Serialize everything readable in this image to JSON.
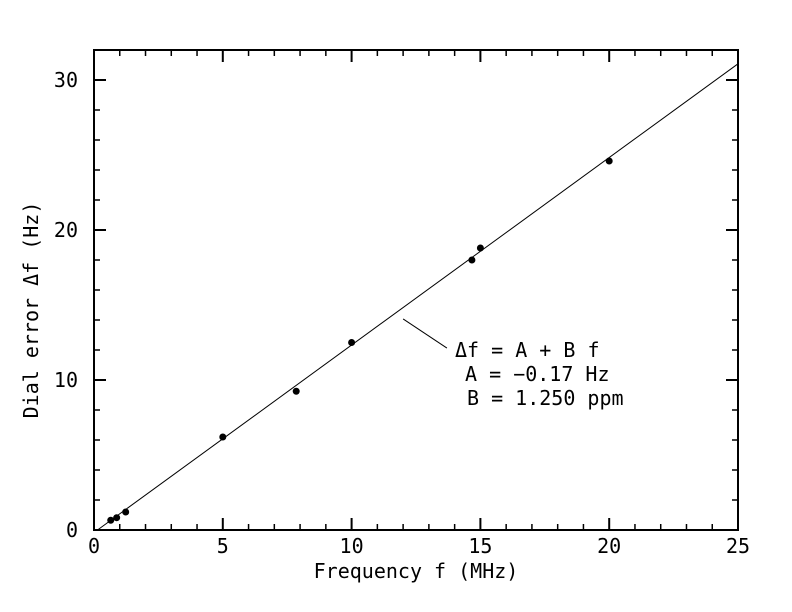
{
  "figure": {
    "background": "#ffffff",
    "ink": "#000000"
  },
  "chart_data": {
    "type": "scatter",
    "title": "",
    "xlabel": "Frequency f (MHz)",
    "ylabel": "Dial error Δf (Hz)",
    "xlim": [
      0,
      25
    ],
    "ylim": [
      0,
      32
    ],
    "grid": false,
    "x_major_ticks": [
      0,
      5,
      10,
      15,
      20,
      25
    ],
    "x_tick_labels": [
      "0",
      "5",
      "10",
      "15",
      "20",
      "25"
    ],
    "x_minor_step": 1,
    "y_major_ticks": [
      0,
      10,
      20,
      30
    ],
    "y_tick_labels": [
      "0",
      "10",
      "20",
      "30"
    ],
    "y_minor_step": 2,
    "x": [
      0.65,
      0.88,
      1.23,
      5.0,
      7.85,
      10.0,
      14.67,
      15.0,
      20.0
    ],
    "y": [
      0.65,
      0.82,
      1.2,
      6.2,
      9.25,
      12.5,
      18.0,
      18.8,
      24.6
    ],
    "marker": {
      "shape": "filled-circle",
      "color": "#000000",
      "radius_px": 3.5
    },
    "fit_line": {
      "A_hz": -0.17,
      "B_ppm": 1.25,
      "x_start": 0.136,
      "x_end": 25,
      "color": "#000000"
    },
    "annotation": {
      "lines": [
        "Δf = A + B f",
        "A = −0.17 Hz",
        "B = 1.250 ppm"
      ],
      "pointer_from": {
        "x": 13.7,
        "y": 12.13
      },
      "pointer_to": {
        "x": 12.0,
        "y": 14.07
      }
    }
  }
}
